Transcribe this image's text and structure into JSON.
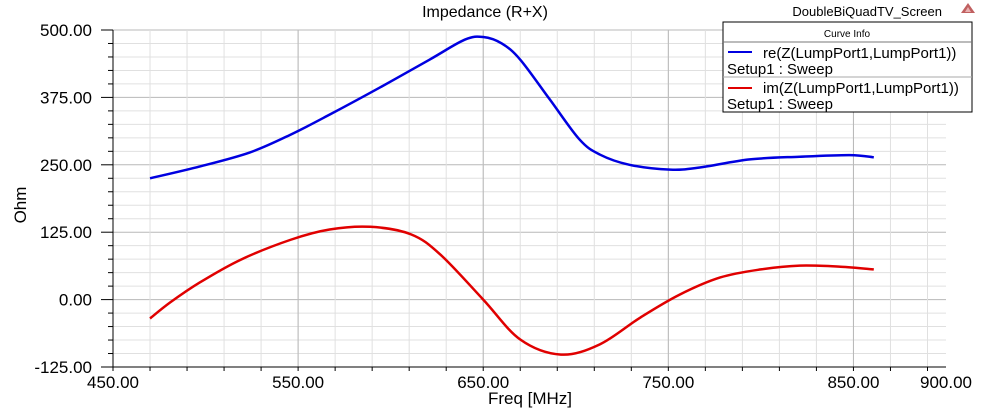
{
  "project_name": "DoubleBiQuadTV_Screen",
  "logo_icon": "ansys-triangle-icon",
  "legend_title": "Curve Info",
  "chart_data": {
    "type": "line",
    "title": "Impedance (R+X)",
    "xlabel": "Freq [MHz]",
    "ylabel": "Ohm",
    "xlim": [
      450,
      900
    ],
    "ylim": [
      -125,
      500
    ],
    "xticks": [
      "450.00",
      "550.00",
      "650.00",
      "750.00",
      "850.00",
      "900.00"
    ],
    "yticks": [
      "500.00",
      "375.00",
      "250.00",
      "125.00",
      "0.00",
      "-125.00"
    ],
    "grid": true,
    "legend_placement": "top-right",
    "series": [
      {
        "name": "re(Z(LumpPort1,LumpPort1))",
        "setup": "Setup1 : Sweep",
        "color": "#0000e0",
        "x": [
          470,
          497,
          524,
          546,
          567,
          594,
          621,
          640,
          650,
          660,
          670,
          686,
          702,
          713,
          729,
          751,
          767,
          794,
          821,
          848,
          861
        ],
        "y": [
          225,
          247,
          273,
          306,
          343,
          393,
          445,
          482,
          487,
          475,
          445,
          371,
          297,
          269,
          250,
          241,
          245,
          260,
          265,
          268,
          264
        ]
      },
      {
        "name": "im(Z(LumpPort1,LumpPort1))",
        "setup": "Setup1 : Sweep",
        "color": "#e00000",
        "x": [
          470,
          481,
          497,
          519,
          546,
          567,
          589,
          611,
          627,
          650,
          670,
          692,
          713,
          735,
          756,
          778,
          800,
          821,
          843,
          861
        ],
        "y": [
          -35,
          -5,
          32,
          74,
          111,
          130,
          135,
          121,
          83,
          0,
          -74,
          -102,
          -83,
          -33,
          9,
          41,
          56,
          63,
          61,
          56
        ]
      }
    ]
  }
}
